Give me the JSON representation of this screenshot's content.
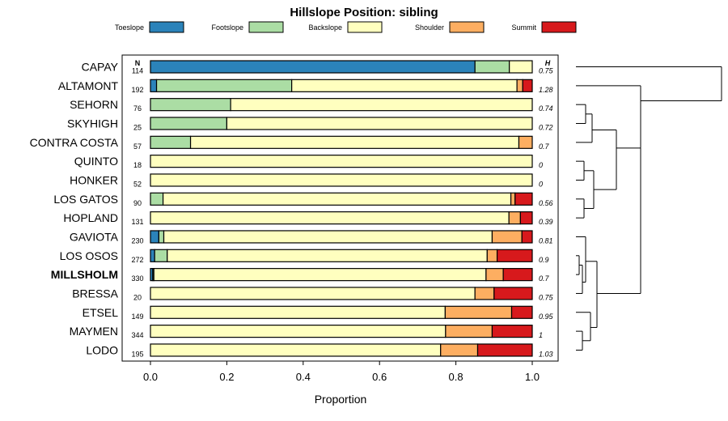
{
  "chart_data": {
    "type": "bar",
    "title": "Hillslope Position: sibling",
    "xlabel": "Proportion",
    "ylabel": "",
    "xlim": [
      0,
      1
    ],
    "xticks": [
      "0.0",
      "0.2",
      "0.4",
      "0.6",
      "0.8",
      "1.0"
    ],
    "n_header": "N",
    "h_header": "H",
    "highlight": "MILLSHOLM",
    "legend_position": "top",
    "categories": [
      "Toeslope",
      "Footslope",
      "Backslope",
      "Shoulder",
      "Summit"
    ],
    "colors": [
      "#2B83BA",
      "#ABDDA4",
      "#FFFFBF",
      "#FDAE61",
      "#D7191C"
    ],
    "rows": [
      {
        "name": "CAPAY",
        "n": "114",
        "h": "0.75",
        "values": [
          0.85,
          0.09,
          0.06,
          0,
          0
        ]
      },
      {
        "name": "ALTAMONT",
        "n": "192",
        "h": "1.28",
        "values": [
          0.016,
          0.354,
          0.59,
          0.015,
          0.025
        ]
      },
      {
        "name": "SEHORN",
        "n": "76",
        "h": "0.74",
        "values": [
          0,
          0.21,
          0.79,
          0,
          0
        ]
      },
      {
        "name": "SKYHIGH",
        "n": "25",
        "h": "0.72",
        "values": [
          0,
          0.2,
          0.8,
          0,
          0
        ]
      },
      {
        "name": "CONTRA COSTA",
        "n": "57",
        "h": "0.7",
        "values": [
          0,
          0.105,
          0.86,
          0.035,
          0
        ]
      },
      {
        "name": "QUINTO",
        "n": "18",
        "h": "0",
        "values": [
          0,
          0,
          1,
          0,
          0
        ]
      },
      {
        "name": "HONKER",
        "n": "52",
        "h": "0",
        "values": [
          0,
          0,
          1,
          0,
          0
        ]
      },
      {
        "name": "LOS GATOS",
        "n": "90",
        "h": "0.56",
        "values": [
          0,
          0.033,
          0.911,
          0.011,
          0.045
        ]
      },
      {
        "name": "HOPLAND",
        "n": "131",
        "h": "0.39",
        "values": [
          0,
          0,
          0.939,
          0.03,
          0.031
        ]
      },
      {
        "name": "GAVIOTA",
        "n": "230",
        "h": "0.81",
        "values": [
          0.022,
          0.013,
          0.86,
          0.078,
          0.027
        ]
      },
      {
        "name": "LOS OSOS",
        "n": "272",
        "h": "0.9",
        "values": [
          0.011,
          0.033,
          0.838,
          0.026,
          0.092
        ]
      },
      {
        "name": "MILLSHOLM",
        "n": "330",
        "h": "0.7",
        "values": [
          0.006,
          0.003,
          0.87,
          0.045,
          0.076
        ]
      },
      {
        "name": "BRESSA",
        "n": "20",
        "h": "0.75",
        "values": [
          0,
          0,
          0.85,
          0.05,
          0.1
        ]
      },
      {
        "name": "ETSEL",
        "n": "149",
        "h": "0.95",
        "values": [
          0,
          0,
          0.772,
          0.174,
          0.054
        ]
      },
      {
        "name": "MAYMEN",
        "n": "344",
        "h": "1",
        "values": [
          0,
          0,
          0.773,
          0.122,
          0.105
        ]
      },
      {
        "name": "LODO",
        "n": "195",
        "h": "1.03",
        "values": [
          0,
          0,
          0.76,
          0.097,
          0.143
        ]
      }
    ]
  }
}
